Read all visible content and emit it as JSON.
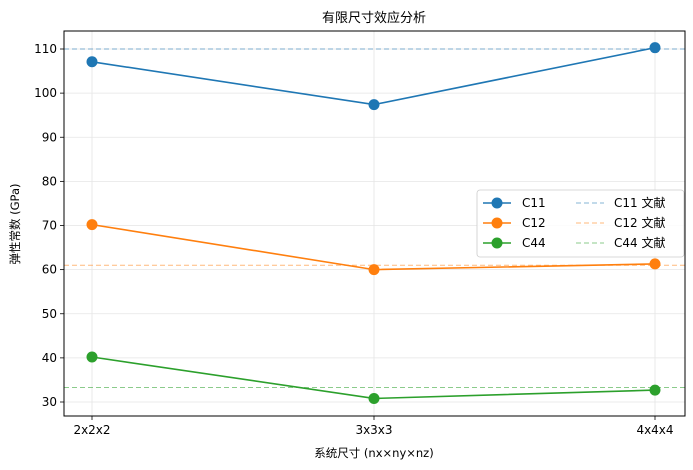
{
  "chart_data": {
    "type": "line",
    "title": "有限尺寸效应分析",
    "xlabel": "系统尺寸 (nx×ny×nz)",
    "ylabel": "弹性常数 (GPa)",
    "categories": [
      "2x2x2",
      "3x3x3",
      "4x4x4"
    ],
    "ylim": [
      27,
      114
    ],
    "yticks": [
      30,
      40,
      50,
      60,
      70,
      80,
      90,
      100,
      110
    ],
    "grid": true,
    "legend_position": "center right",
    "series": [
      {
        "name": "C11",
        "values": [
          107.1,
          97.4,
          110.3
        ],
        "color": "#1f77b4",
        "marker": "circle"
      },
      {
        "name": "C12",
        "values": [
          70.2,
          60.0,
          61.3
        ],
        "color": "#ff7f0e",
        "marker": "circle"
      },
      {
        "name": "C44",
        "values": [
          40.2,
          30.8,
          32.7
        ],
        "color": "#2ca02c",
        "marker": "circle"
      }
    ],
    "reference_lines": [
      {
        "name": "C11 文献",
        "value": 110.0,
        "color": "#1f77b4",
        "style": "dashed"
      },
      {
        "name": "C12 文献",
        "value": 61.0,
        "color": "#ff7f0e",
        "style": "dashed"
      },
      {
        "name": "C44 文献",
        "value": 33.3,
        "color": "#2ca02c",
        "style": "dashed"
      }
    ]
  }
}
